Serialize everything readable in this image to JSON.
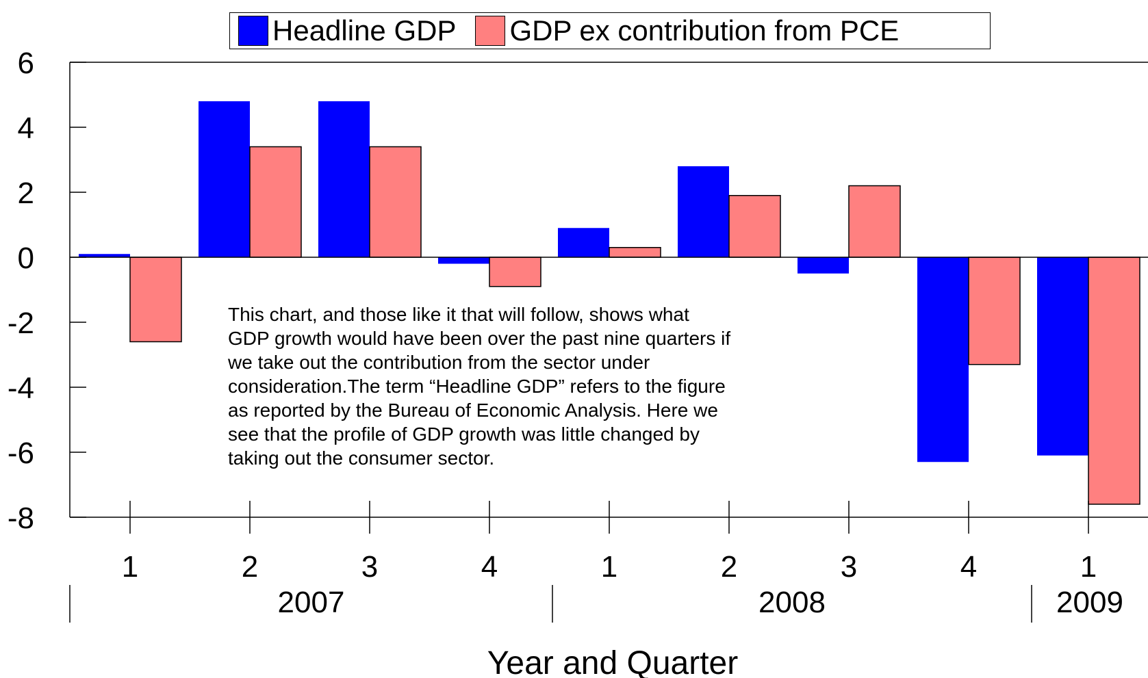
{
  "chart_data": {
    "type": "bar",
    "title": "",
    "xlabel": "Year and Quarter",
    "ylabel": "",
    "ylim": [
      -8,
      6
    ],
    "yticks": [
      6,
      4,
      2,
      0,
      -2,
      -4,
      -6,
      -8
    ],
    "grid": false,
    "legend_position": "top-center",
    "categories": [
      "1",
      "2",
      "3",
      "4",
      "1",
      "2",
      "3",
      "4",
      "1"
    ],
    "year_groups": [
      {
        "label": "2007",
        "quarters": 4
      },
      {
        "label": "2008",
        "quarters": 4
      },
      {
        "label": "2009",
        "quarters": 1
      }
    ],
    "series": [
      {
        "name": "Headline GDP",
        "color": "#0000FF",
        "values": [
          0.1,
          4.8,
          4.8,
          -0.2,
          0.9,
          2.8,
          -0.5,
          -6.3,
          -6.1
        ]
      },
      {
        "name": "GDP ex contribution from PCE",
        "color": "#FF8080",
        "values": [
          -2.6,
          3.4,
          3.4,
          -0.9,
          0.3,
          1.9,
          2.2,
          -3.3,
          -7.6
        ]
      }
    ]
  },
  "annotation": [
    "This chart, and those like it that will follow, shows what",
    "GDP growth would have been over the past nine quarters if",
    "we take out the contribution from the sector under",
    "consideration.The term “Headline GDP” refers to the figure",
    "as reported by the Bureau of Economic Analysis.  Here we",
    "see that the profile of GDP growth was little changed by",
    "taking out the consumer sector."
  ]
}
